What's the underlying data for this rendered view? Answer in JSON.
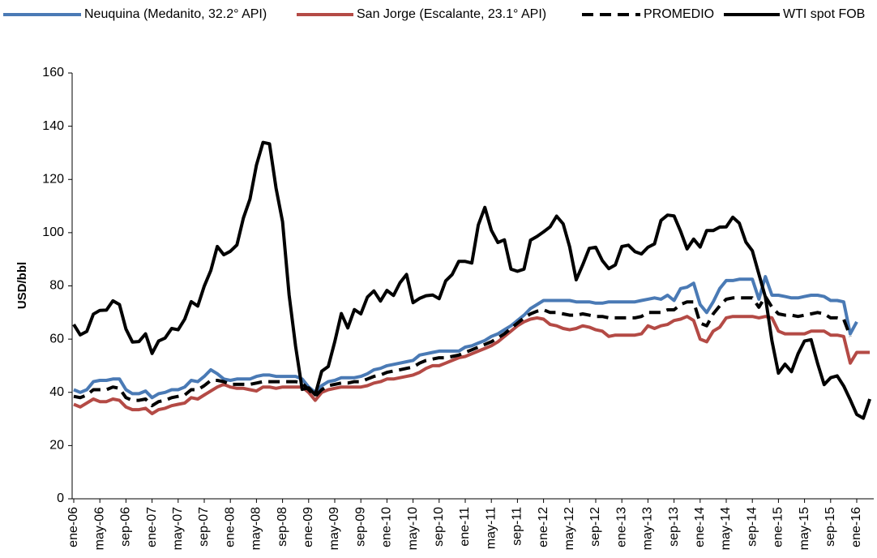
{
  "chart_data": {
    "type": "line",
    "ylabel": "USD/bbl",
    "ylim": [
      0,
      160
    ],
    "yticks": [
      0,
      20,
      40,
      60,
      80,
      100,
      120,
      140,
      160
    ],
    "categories": [
      "ene-06",
      null,
      null,
      null,
      "may-06",
      null,
      null,
      null,
      "sep-06",
      null,
      null,
      null,
      "ene-07",
      null,
      null,
      null,
      "may-07",
      null,
      null,
      null,
      "sep-07",
      null,
      null,
      null,
      "ene-08",
      null,
      null,
      null,
      "may-08",
      null,
      null,
      null,
      "sep-08",
      null,
      null,
      null,
      "ene-09",
      null,
      null,
      null,
      "may-09",
      null,
      null,
      null,
      "sep-09",
      null,
      null,
      null,
      "ene-10",
      null,
      null,
      null,
      "may-10",
      null,
      null,
      null,
      "sep-10",
      null,
      null,
      null,
      "ene-11",
      null,
      null,
      null,
      "may-11",
      null,
      null,
      null,
      "sep-11",
      null,
      null,
      null,
      "ene-12",
      null,
      null,
      null,
      "may-12",
      null,
      null,
      null,
      "sep-12",
      null,
      null,
      null,
      "ene-13",
      null,
      null,
      null,
      "may-13",
      null,
      null,
      null,
      "sep-13",
      null,
      null,
      null,
      "ene-14",
      null,
      null,
      null,
      "may-14",
      null,
      null,
      null,
      "sep-14",
      null,
      null,
      null,
      "ene-15",
      null,
      null,
      null,
      "may-15",
      null,
      null,
      null,
      "sep-15",
      null,
      null,
      null,
      "ene-16",
      null,
      null
    ],
    "series": [
      {
        "name": "Neuquina (Medanito, 32.2° API)",
        "color": "#4a7ab5",
        "dash": false,
        "values": [
          41,
          40,
          41,
          44,
          44.5,
          44.5,
          45,
          45,
          41,
          39.5,
          39.5,
          40.5,
          38,
          39.5,
          40,
          41,
          41,
          42,
          44.5,
          44,
          46,
          48.5,
          47,
          45,
          44.5,
          45,
          45,
          45,
          46,
          46.5,
          46.5,
          46,
          46,
          46,
          46,
          45,
          42,
          40,
          42.5,
          44,
          44.5,
          45.5,
          45.5,
          45.5,
          46,
          47,
          48.5,
          49,
          50,
          50.5,
          51,
          51.5,
          52,
          54,
          54.5,
          55,
          55.5,
          55.5,
          55.5,
          55.5,
          57,
          57.5,
          58.5,
          59.5,
          61,
          62,
          63.5,
          65,
          67,
          69,
          71.5,
          73,
          74.5,
          74.5,
          74.5,
          74.5,
          74.5,
          74,
          74,
          74,
          73.5,
          73.5,
          74,
          74,
          74,
          74,
          74,
          74.5,
          75,
          75.5,
          75,
          76.5,
          74.5,
          79,
          79.5,
          81,
          73,
          70,
          74,
          79,
          82,
          82,
          82.5,
          82.5,
          82.5,
          75,
          83.5,
          76.5,
          76.5,
          76,
          75.5,
          75.5,
          76,
          76.5,
          76.5,
          76,
          74.5,
          74.5,
          74,
          62,
          66.5,
          null,
          null
        ]
      },
      {
        "name": "San Jorge (Escalante, 23.1° API)",
        "color": "#b44a45",
        "dash": false,
        "values": [
          35.5,
          34.5,
          36,
          37.5,
          36.5,
          36.5,
          37.5,
          37,
          34.5,
          33.5,
          33.5,
          34,
          32,
          33.5,
          34,
          35,
          35.5,
          36,
          38,
          37.5,
          39,
          40.5,
          42,
          43,
          42,
          41.5,
          41.5,
          41,
          40.5,
          42,
          42,
          41.5,
          42,
          42,
          42,
          42,
          40,
          37,
          40,
          41,
          41.5,
          42,
          42,
          42,
          42,
          42.5,
          43.5,
          44,
          45,
          45,
          45.5,
          46,
          46.5,
          47.5,
          49,
          50,
          50,
          51,
          52,
          53,
          53.5,
          54.5,
          55.5,
          56.5,
          57.5,
          59,
          61,
          63,
          65,
          66.5,
          67.5,
          68,
          67.5,
          65.5,
          65,
          64,
          63.5,
          64,
          65,
          64.5,
          63.5,
          63,
          61,
          61.5,
          61.5,
          61.5,
          61.5,
          62,
          65,
          64,
          65,
          65.5,
          67,
          67.5,
          68.5,
          67,
          60,
          59,
          63,
          64.5,
          68,
          68.5,
          68.5,
          68.5,
          68.5,
          68,
          68.5,
          68,
          63,
          62,
          62,
          62,
          62,
          63,
          63,
          63,
          61.5,
          61.5,
          61,
          51,
          55,
          55,
          55
        ]
      },
      {
        "name": "PROMEDIO",
        "color": "#000000",
        "dash": true,
        "values": [
          38.5,
          38,
          39,
          41,
          41,
          41,
          42,
          41.5,
          38,
          37,
          37,
          37.5,
          35,
          36.5,
          37,
          38,
          38.5,
          39,
          41,
          41,
          42.5,
          44.5,
          44.5,
          44,
          43,
          43,
          43,
          43,
          43.5,
          44,
          44,
          44,
          44,
          44,
          44,
          43.5,
          41,
          38.5,
          41,
          42.5,
          43,
          43.5,
          43.5,
          44,
          44,
          45,
          46,
          46.5,
          47.5,
          48,
          48.5,
          49,
          49.5,
          51,
          52,
          52.5,
          53,
          53,
          53.5,
          54,
          55,
          56,
          57,
          58,
          59,
          60.5,
          62,
          64,
          66,
          68,
          69.5,
          70.5,
          71,
          70,
          70,
          69.5,
          69,
          69,
          69.5,
          69,
          68.5,
          68.5,
          68,
          68,
          68,
          68,
          68,
          68.5,
          70,
          70,
          70,
          71,
          71,
          73,
          74,
          74,
          66,
          65,
          69.5,
          72.5,
          75,
          75.5,
          75.5,
          75.5,
          75.5,
          72,
          76,
          72,
          69.5,
          69,
          69,
          68.5,
          69,
          69.5,
          70,
          69.5,
          68,
          68,
          67.5,
          61,
          null,
          null,
          null
        ]
      },
      {
        "name": "WTI spot FOB",
        "color": "#000000",
        "dash": false,
        "values": [
          65.5,
          61.6,
          62.9,
          69.4,
          70.8,
          70.9,
          74.4,
          73,
          63.8,
          58.9,
          59.1,
          62,
          54.6,
          59.3,
          60.4,
          64,
          63.5,
          67.5,
          74.1,
          72.4,
          79.9,
          85.8,
          94.8,
          91.7,
          93,
          95.4,
          105.5,
          112.6,
          125.4,
          133.9,
          133.4,
          116.7,
          104.1,
          76.6,
          57.3,
          41.1,
          41.7,
          39.1,
          47.9,
          49.7,
          59,
          69.6,
          64.2,
          71.1,
          69.5,
          75.8,
          78.1,
          74.3,
          78.3,
          76.4,
          81.2,
          84.3,
          73.7,
          75.3,
          76.3,
          76.6,
          75.2,
          81.9,
          84.3,
          89.2,
          89.2,
          88.6,
          102.9,
          109.5,
          100.9,
          96.3,
          97.3,
          86.3,
          85.5,
          86.3,
          97.2,
          98.6,
          100.3,
          102.2,
          106.2,
          103.3,
          94.7,
          82.3,
          87.9,
          94.1,
          94.5,
          89.5,
          86.5,
          87.9,
          94.8,
          95.3,
          92.9,
          92,
          94.5,
          95.8,
          104.6,
          106.6,
          106.3,
          100.5,
          93.9,
          97.6,
          94.6,
          100.8,
          100.8,
          102.1,
          102.2,
          105.8,
          103.6,
          96.5,
          93.2,
          84.4,
          75.8,
          59.3,
          47.2,
          50.6,
          47.8,
          54.5,
          59.3,
          59.8,
          50.9,
          42.9,
          45.5,
          46.2,
          42.4,
          37.2,
          31.7,
          30.3,
          37.5
        ]
      }
    ]
  }
}
